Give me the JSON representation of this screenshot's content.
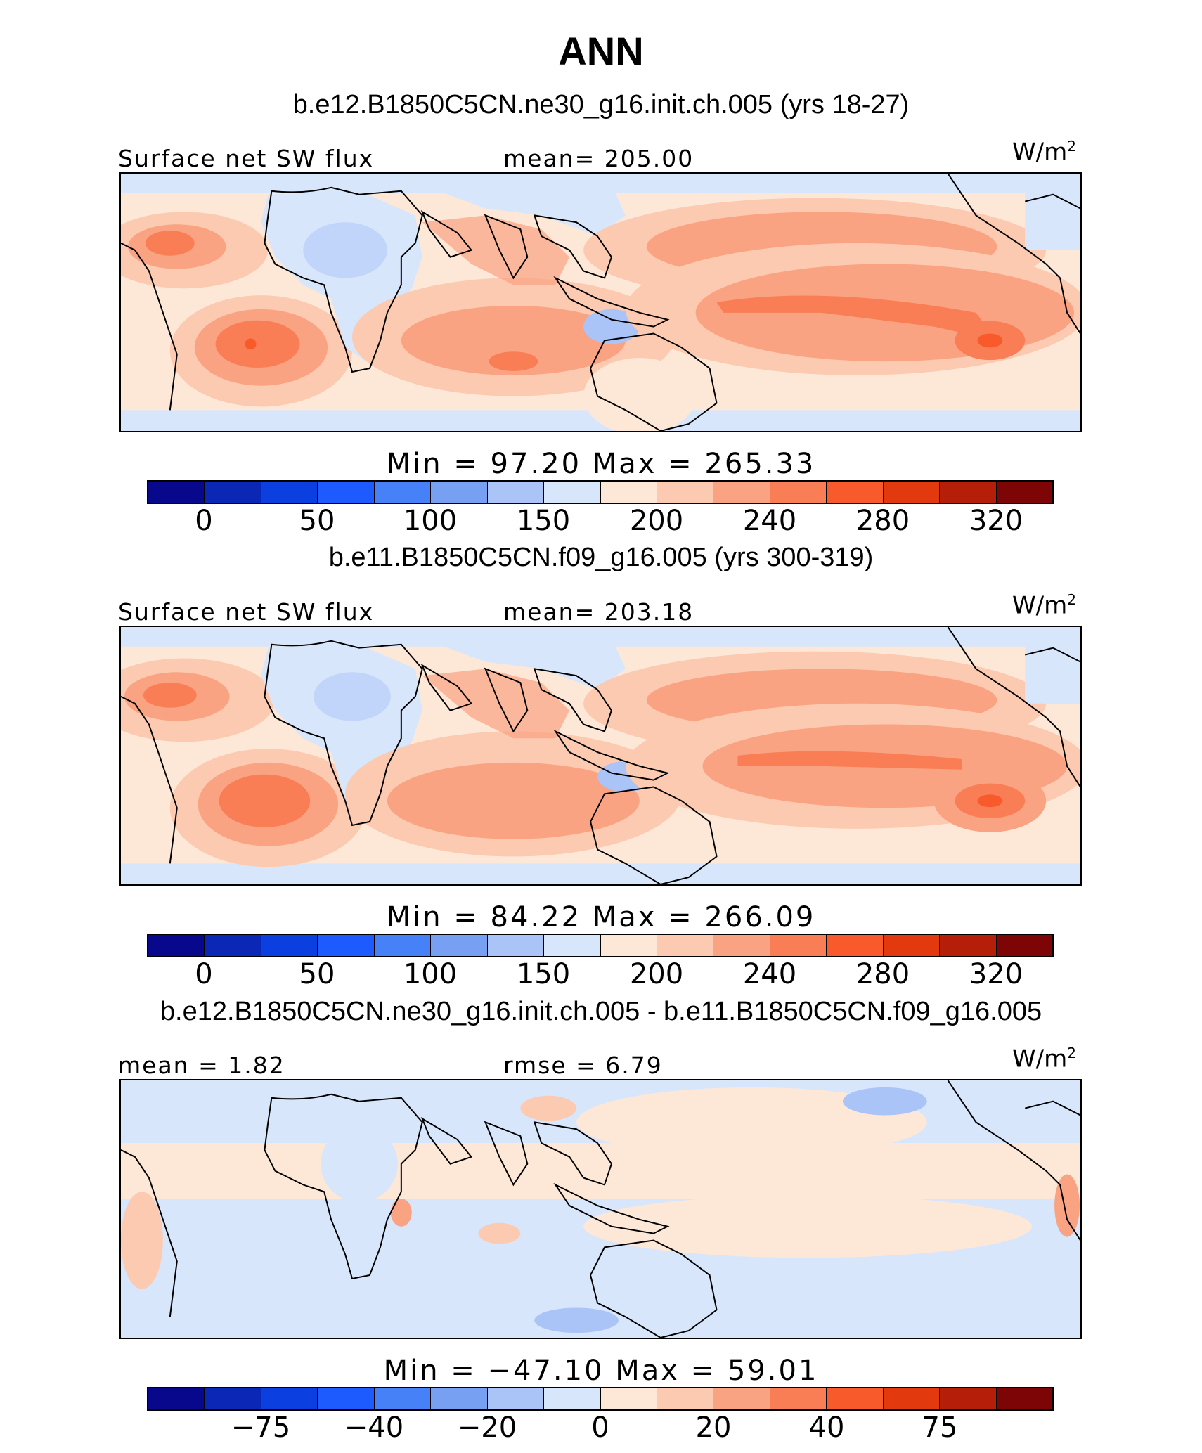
{
  "figure": {
    "title": "ANN",
    "units": "W/m",
    "units_sup": "2",
    "colors_main": [
      "#08088c",
      "#0a27b5",
      "#0b3fe0",
      "#1e5bff",
      "#4781f7",
      "#779ff2",
      "#aac4f8",
      "#d7e6fb",
      "#fde8d8",
      "#fccab0",
      "#f9a382",
      "#f97e55",
      "#f85a2c",
      "#e23a0e",
      "#b51e08",
      "#7d0505"
    ]
  },
  "panels": [
    {
      "subtitle": "b.e12.B1850C5CN.ne30_g16.init.ch.005 (yrs 18-27)",
      "left_label": "Surface net SW flux",
      "center_label": "mean=  205.00",
      "minmax": "Min  =   97.20  Max  =  265.33",
      "ticks": [
        "0",
        "50",
        "100",
        "150",
        "200",
        "240",
        "280",
        "320"
      ]
    },
    {
      "subtitle": "b.e11.B1850C5CN.f09_g16.005 (yrs 300-319)",
      "left_label": "Surface net SW flux",
      "center_label": "mean=  203.18",
      "minmax": "Min  =   84.22  Max  =  266.09",
      "ticks": [
        "0",
        "50",
        "100",
        "150",
        "200",
        "240",
        "280",
        "320"
      ]
    },
    {
      "subtitle": "b.e12.B1850C5CN.ne30_g16.init.ch.005 - b.e11.B1850C5CN.f09_g16.005",
      "left_label": "mean  =     1.82",
      "center_label": "rmse  =     6.79",
      "minmax": "Min  = −47.10  Max  =    59.01",
      "ticks": [
        "−75",
        "−40",
        "−20",
        "0",
        "20",
        "40",
        "75"
      ]
    }
  ]
}
